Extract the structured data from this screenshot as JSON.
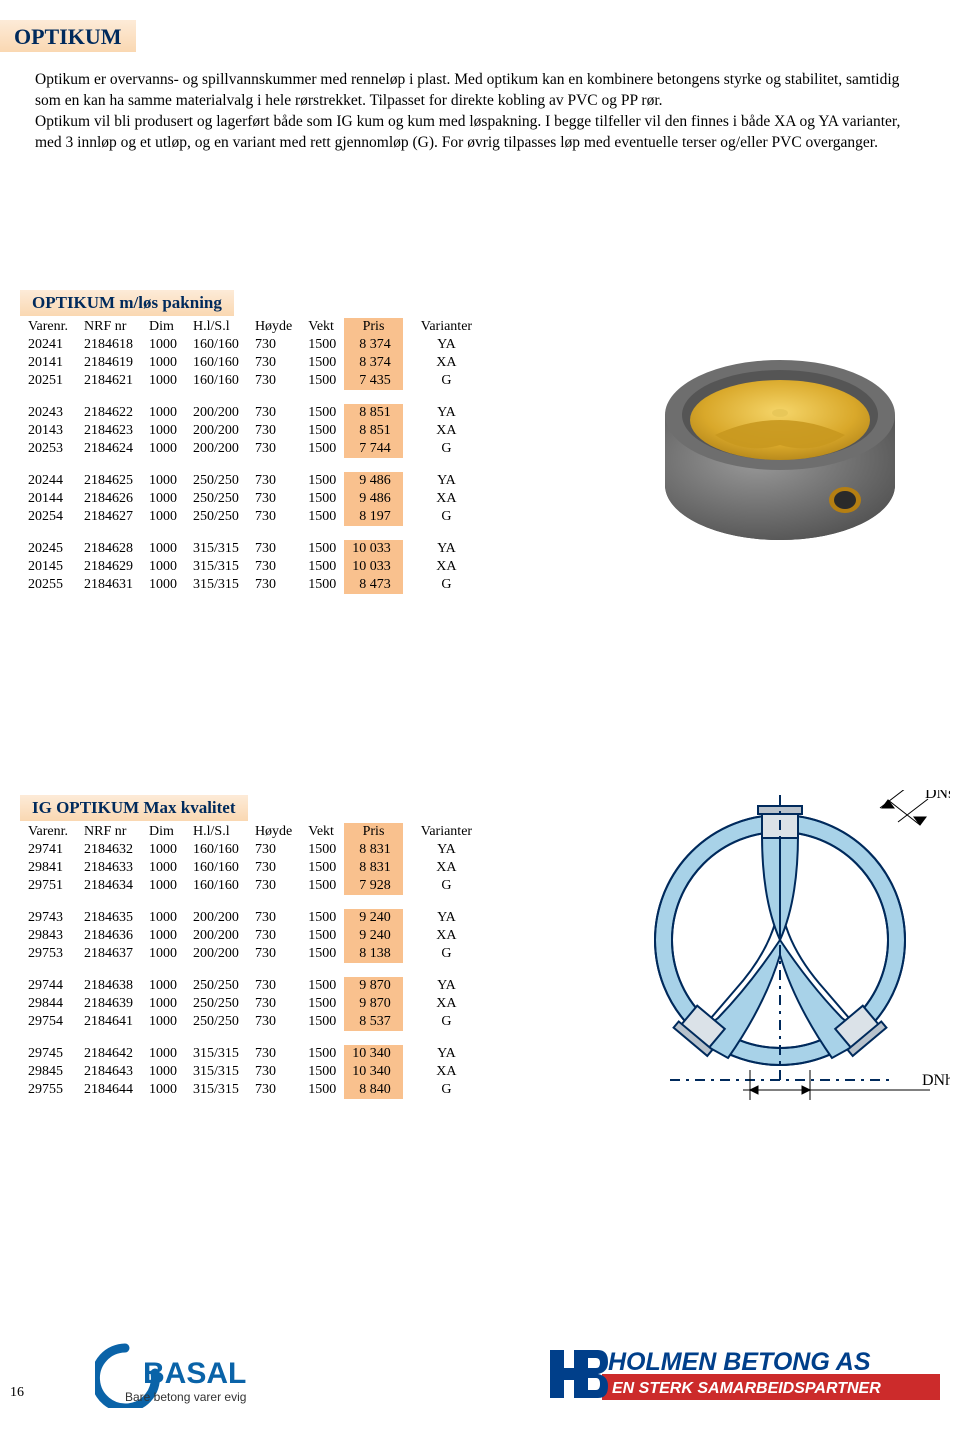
{
  "header": "OPTIKUM",
  "intro": "Optikum er overvanns- og spillvannskummer med renneløp i plast. Med optikum kan en kombinere betongens styrke og stabilitet, samtidig som en kan ha samme materialvalg i hele rørstrekket. Tilpasset for direkte kobling av PVC og PP rør.\nOptikum vil bli produsert og lagerført både som IG kum og kum med løspakning. I begge tilfeller vil den finnes i både XA og YA varianter, med 3 innløp og et utløp, og en variant med rett gjennomløp (G). For øvrig tilpasses løp med eventuelle terser og/eller PVC overganger.",
  "section1_title": "OPTIKUM  m/løs pakning",
  "section2_title": "IG OPTIKUM Max kvalitet",
  "columns": [
    "Varenr.",
    "NRF nr",
    "Dim",
    "H.l/S.l",
    "Høyde",
    "Vekt",
    "Pris",
    "Varianter"
  ],
  "section1_groups": [
    [
      [
        "20241",
        "2184618",
        "1000",
        "160/160",
        "730",
        "1500",
        "8 374",
        "YA"
      ],
      [
        "20141",
        "2184619",
        "1000",
        "160/160",
        "730",
        "1500",
        "8 374",
        "XA"
      ],
      [
        "20251",
        "2184621",
        "1000",
        "160/160",
        "730",
        "1500",
        "7 435",
        "G"
      ]
    ],
    [
      [
        "20243",
        "2184622",
        "1000",
        "200/200",
        "730",
        "1500",
        "8 851",
        "YA"
      ],
      [
        "20143",
        "2184623",
        "1000",
        "200/200",
        "730",
        "1500",
        "8 851",
        "XA"
      ],
      [
        "20253",
        "2184624",
        "1000",
        "200/200",
        "730",
        "1500",
        "7 744",
        "G"
      ]
    ],
    [
      [
        "20244",
        "2184625",
        "1000",
        "250/250",
        "730",
        "1500",
        "9 486",
        "YA"
      ],
      [
        "20144",
        "2184626",
        "1000",
        "250/250",
        "730",
        "1500",
        "9 486",
        "XA"
      ],
      [
        "20254",
        "2184627",
        "1000",
        "250/250",
        "730",
        "1500",
        "8 197",
        "G"
      ]
    ],
    [
      [
        "20245",
        "2184628",
        "1000",
        "315/315",
        "730",
        "1500",
        "10 033",
        "YA"
      ],
      [
        "20145",
        "2184629",
        "1000",
        "315/315",
        "730",
        "1500",
        "10 033",
        "XA"
      ],
      [
        "20255",
        "2184631",
        "1000",
        "315/315",
        "730",
        "1500",
        "8 473",
        "G"
      ]
    ]
  ],
  "section2_groups": [
    [
      [
        "29741",
        "2184632",
        "1000",
        "160/160",
        "730",
        "1500",
        "8 831",
        "YA"
      ],
      [
        "29841",
        "2184633",
        "1000",
        "160/160",
        "730",
        "1500",
        "8 831",
        "XA"
      ],
      [
        "29751",
        "2184634",
        "1000",
        "160/160",
        "730",
        "1500",
        "7 928",
        "G"
      ]
    ],
    [
      [
        "29743",
        "2184635",
        "1000",
        "200/200",
        "730",
        "1500",
        "9 240",
        "YA"
      ],
      [
        "29843",
        "2184636",
        "1000",
        "200/200",
        "730",
        "1500",
        "9 240",
        "XA"
      ],
      [
        "29753",
        "2184637",
        "1000",
        "200/200",
        "730",
        "1500",
        "8 138",
        "G"
      ]
    ],
    [
      [
        "29744",
        "2184638",
        "1000",
        "250/250",
        "730",
        "1500",
        "9 870",
        "YA"
      ],
      [
        "29844",
        "2184639",
        "1000",
        "250/250",
        "730",
        "1500",
        "9 870",
        "XA"
      ],
      [
        "29754",
        "2184641",
        "1000",
        "250/250",
        "730",
        "1500",
        "8 537",
        "G"
      ]
    ],
    [
      [
        "29745",
        "2184642",
        "1000",
        "315/315",
        "730",
        "1500",
        "10 340",
        "YA"
      ],
      [
        "29845",
        "2184643",
        "1000",
        "315/315",
        "730",
        "1500",
        "10 340",
        "XA"
      ],
      [
        "29755",
        "2184644",
        "1000",
        "315/315",
        "730",
        "1500",
        "8 840",
        "G"
      ]
    ]
  ],
  "diagram_labels": {
    "dns": "DNs",
    "dnh": "DNh"
  },
  "footer": {
    "page": "16",
    "basal": {
      "line1": "BASAL",
      "line2": "Bare betong varer evig"
    },
    "holmen": {
      "line1": "HOLMEN BETONG AS",
      "line2": "EN STERK SAMARBEIDSPARTNER"
    }
  },
  "colors": {
    "header_bg_top": "#fdebd8",
    "header_bg_bot": "#fad8b2",
    "header_text": "#002a5c",
    "pris_bg": "#f9c18e",
    "img_gold": "#d9a82a",
    "img_grey_light": "#8a8a8a",
    "img_grey_dark": "#555555",
    "diagram_fill": "#a8d2e8",
    "diagram_stroke": "#002a5c",
    "holmen_blue": "#003f8a",
    "holmen_red": "#cc2b2b"
  }
}
